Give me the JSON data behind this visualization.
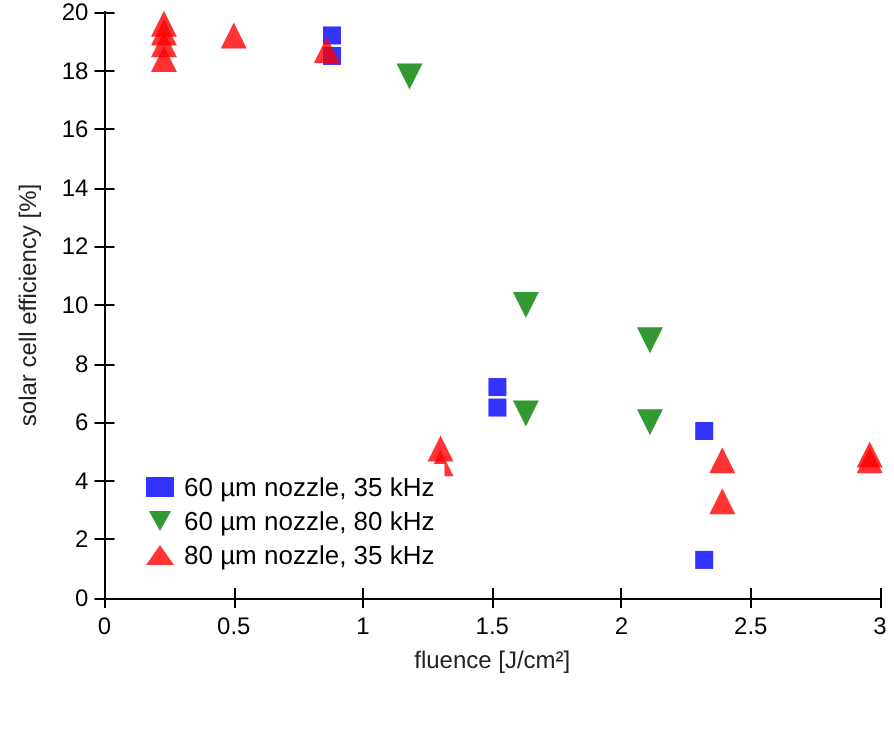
{
  "chart_data": {
    "type": "scatter",
    "xlabel": "fluence [J/cm²]",
    "ylabel": "solar cell efficiency [%]",
    "xlim": [
      0,
      3
    ],
    "xticks": [
      0,
      0.5,
      1,
      1.5,
      2,
      2.5,
      3
    ],
    "ylim": [
      0,
      20
    ],
    "yticks": [
      0,
      2,
      4,
      6,
      8,
      10,
      12,
      14,
      16,
      18,
      20
    ],
    "grid": false,
    "legend": "bottom left",
    "series": [
      {
        "name": "60 µm nozzle, 35 kHz",
        "color": "#0000ff",
        "marker": "square",
        "x": [
          0.88,
          0.88,
          1.52,
          1.52,
          2.32,
          2.32
        ],
        "values": [
          19.2,
          18.5,
          7.2,
          6.5,
          5.7,
          1.3
        ]
      },
      {
        "name": "60 µm nozzle, 80 kHz",
        "color": "#008000",
        "marker": "triangle-down",
        "x": [
          1.18,
          1.63,
          1.63,
          2.11,
          2.11
        ],
        "values": [
          17.8,
          10.0,
          6.3,
          8.8,
          6.0
        ]
      },
      {
        "name": "80 µm nozzle, 35 kHz",
        "color": "#ff0000",
        "marker": "triangle",
        "x": [
          0.23,
          0.23,
          0.23,
          0.23,
          0.5,
          0.86,
          1.3,
          1.3,
          2.39,
          2.39,
          2.96,
          2.96
        ],
        "values": [
          19.6,
          19.3,
          18.9,
          18.4,
          19.2,
          18.7,
          5.1,
          4.6,
          4.7,
          3.3,
          4.9,
          4.7
        ]
      }
    ]
  }
}
